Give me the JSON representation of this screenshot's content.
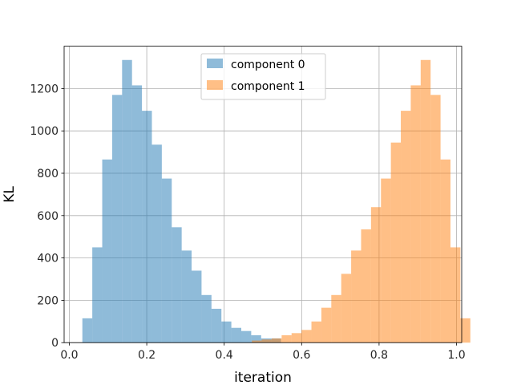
{
  "chart_data": {
    "type": "bar",
    "subtype": "histogram",
    "xlabel": "iteration",
    "ylabel": "KL",
    "xlim": [
      -0.0134,
      1.0134
    ],
    "ylim": [
      0,
      1400
    ],
    "grid": true,
    "legend_position": "upper center",
    "x_ticks": [
      0.0,
      0.2,
      0.4,
      0.6,
      0.8,
      1.0
    ],
    "x_tick_labels": [
      "0.0",
      "0.2",
      "0.4",
      "0.6",
      "0.8",
      "1.0"
    ],
    "y_ticks": [
      0,
      200,
      400,
      600,
      800,
      1000,
      1200
    ],
    "y_tick_labels": [
      "0",
      "200",
      "400",
      "600",
      "800",
      "1000",
      "1200"
    ],
    "bin_width": 0.02565,
    "series": [
      {
        "name": "component 0",
        "color": "#1f77b4",
        "alpha": 0.5,
        "bin_start": 0.0337,
        "values": [
          115,
          450,
          865,
          1170,
          1335,
          1215,
          1095,
          935,
          775,
          545,
          435,
          340,
          225,
          160,
          100,
          70,
          55,
          35,
          20,
          20
        ]
      },
      {
        "name": "component 1",
        "color": "#ff7f0e",
        "alpha": 0.5,
        "bin_start": 0.4714,
        "values": [
          10,
          15,
          20,
          35,
          45,
          60,
          100,
          165,
          225,
          325,
          435,
          535,
          640,
          775,
          945,
          1095,
          1215,
          1335,
          1170,
          865,
          450,
          115
        ]
      }
    ]
  }
}
